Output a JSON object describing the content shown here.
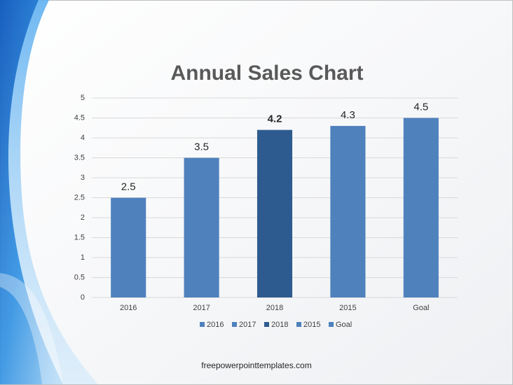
{
  "chart_data": {
    "type": "bar",
    "title": "Annual Sales Chart",
    "categories": [
      "2016",
      "2017",
      "2018",
      "2015",
      "Goal"
    ],
    "values": [
      2.5,
      3.5,
      4.2,
      4.3,
      4.5
    ],
    "colors": [
      "#4f81bd",
      "#4f81bd",
      "#2e5b8f",
      "#4f81bd",
      "#4f81bd"
    ],
    "label_bold": [
      false,
      false,
      true,
      false,
      false
    ],
    "ylim": [
      0,
      5
    ],
    "yticks": [
      0,
      0.5,
      1,
      1.5,
      2,
      2.5,
      3,
      3.5,
      4,
      4.5,
      5
    ],
    "grid": true,
    "legend": "bottom"
  },
  "footer": "freepowerpointtemplates.com"
}
